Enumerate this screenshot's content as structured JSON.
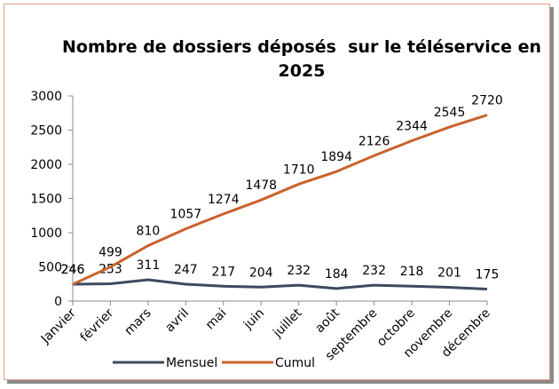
{
  "chart_data": {
    "type": "line",
    "title": "Nombre de dossiers déposés  sur le téléservice en 2025",
    "categories": [
      "Janvier",
      "février",
      "mars",
      "avril",
      "mai",
      "juin",
      "juillet",
      "août",
      "septembre",
      "octobre",
      "novembre",
      "décembre"
    ],
    "series": [
      {
        "name": "Mensuel",
        "color": "#3c4a5f",
        "values": [
          246,
          253,
          311,
          247,
          217,
          204,
          232,
          184,
          232,
          218,
          201,
          175
        ]
      },
      {
        "name": "Cumul",
        "color": "#c9622b",
        "values": [
          246,
          499,
          810,
          1057,
          1274,
          1478,
          1710,
          1894,
          2126,
          2344,
          2545,
          2720
        ]
      }
    ],
    "ylim": [
      0,
      3000
    ],
    "yticks": [
      0,
      500,
      1000,
      1500,
      2000,
      2500,
      3000
    ],
    "grid": false,
    "legend": "bottom"
  }
}
